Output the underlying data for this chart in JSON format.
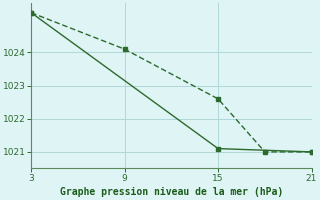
{
  "line1_x": [
    3,
    15,
    21
  ],
  "line1_y": [
    1025.2,
    1021.1,
    1021.0
  ],
  "line2_x": [
    3,
    9,
    15,
    18,
    21
  ],
  "line2_y": [
    1025.2,
    1024.1,
    1022.6,
    1021.0,
    1021.0
  ],
  "line_color": "#2d6a2d",
  "bg_color": "#dff4f4",
  "grid_color": "#b0d8d8",
  "xlabel": "Graphe pression niveau de la mer (hPa)",
  "xlabel_color": "#1a5c1a",
  "xticks": [
    3,
    9,
    15,
    21
  ],
  "yticks": [
    1021,
    1022,
    1023,
    1024
  ],
  "xlim": [
    3,
    21
  ],
  "ylim": [
    1020.5,
    1025.5
  ],
  "tick_color": "#2d6a2d",
  "spine_color": "#5a8a5a"
}
